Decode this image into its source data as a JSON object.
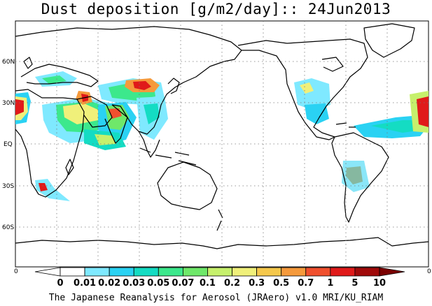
{
  "title": "Dust deposition [g/m2/day]:: 24Jun2013",
  "credit": "The Japanese Reanalysis for Aerosol (JRAero) v1.0 MRI/KU_RIAM",
  "latitude_labels": [
    "60N",
    "30N",
    "EQ",
    "30S",
    "60S"
  ],
  "colorbar": {
    "left_edge_label": "0",
    "right_edge_label": "0",
    "levels": [
      "0",
      "0.01",
      "0.02",
      "0.03",
      "0.05",
      "0.07",
      "0.1",
      "0.2",
      "0.3",
      "0.5",
      "0.7",
      "1",
      "5",
      "10"
    ],
    "colors": [
      "#ffffff",
      "#ffffff",
      "#7fe9ff",
      "#2ad2f3",
      "#14dcc3",
      "#3ce88c",
      "#6fe86a",
      "#c6f06c",
      "#f0f07a",
      "#f5c84c",
      "#f59a3c",
      "#f0502e",
      "#e01a1a",
      "#a00a0a",
      "#7a0000"
    ]
  },
  "map": {
    "projection": "cylindrical equidistant, centred on 180°",
    "dust_colors": {
      "low": "#7fe9ff",
      "mid_low": "#2ad2f3",
      "mid": "#3ce88c",
      "mid_high": "#c6f06c",
      "high": "#f0f07a",
      "higher": "#f59a3c",
      "very_high": "#e01a1a",
      "extreme": "#a00a0a"
    }
  }
}
